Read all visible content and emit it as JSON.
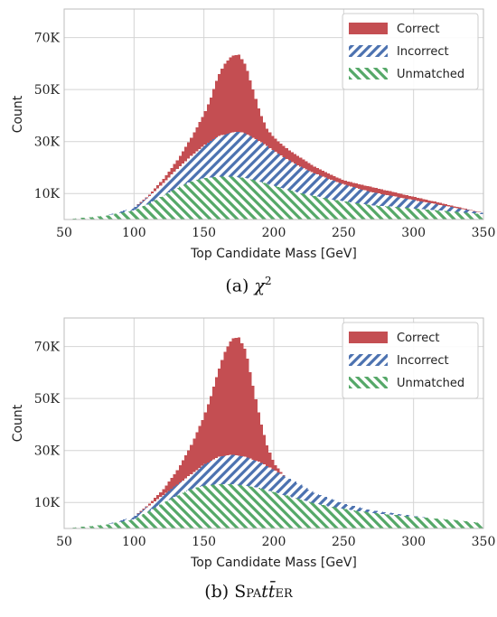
{
  "chart_data": [
    {
      "type": "bar",
      "subtype": "stacked-histogram",
      "title": "",
      "xlabel": "Top Candidate Mass [GeV]",
      "ylabel": "Count",
      "xlim": [
        50,
        350
      ],
      "ylim": [
        0,
        81000
      ],
      "xticks": [
        50,
        100,
        150,
        200,
        250,
        300,
        350
      ],
      "xtick_labels": [
        "50",
        "100",
        "150",
        "200",
        "250",
        "300",
        "350"
      ],
      "yticks": [
        10000,
        30000,
        50000,
        70000
      ],
      "ytick_labels": [
        "10K",
        "30K",
        "50K",
        "70K"
      ],
      "grid": true,
      "legend_position": "top-right",
      "caption_prefix": "(a)",
      "caption_symbol": "χ",
      "caption_sup": "2",
      "bin_width": 2,
      "series": [
        {
          "name": "Correct",
          "color": "#c44e52",
          "hatch": "none",
          "x": [
            50,
            80,
            100,
            110,
            120,
            130,
            140,
            150,
            155,
            160,
            165,
            170,
            175,
            180,
            185,
            190,
            195,
            200,
            210,
            220,
            230,
            250,
            350
          ],
          "top": [
            0,
            1500,
            4500,
            9000,
            15000,
            22000,
            30500,
            40500,
            47000,
            55000,
            60000,
            63000,
            63500,
            59000,
            50000,
            41000,
            35000,
            31500,
            27000,
            23500,
            20000,
            15000,
            2500
          ]
        },
        {
          "name": "Incorrect",
          "color": "#4c72b0",
          "hatch": "forward",
          "x": [
            50,
            80,
            100,
            110,
            120,
            130,
            140,
            150,
            160,
            170,
            175,
            180,
            190,
            200,
            210,
            220,
            230,
            250,
            270,
            300,
            330,
            350
          ],
          "top": [
            0,
            1500,
            4500,
            8500,
            13500,
            19000,
            24000,
            28500,
            32000,
            33500,
            33800,
            33000,
            30000,
            26500,
            23000,
            20000,
            17500,
            13500,
            10500,
            7500,
            4500,
            2500
          ]
        },
        {
          "name": "Unmatched",
          "color": "#55a868",
          "hatch": "backward",
          "x": [
            50,
            80,
            100,
            110,
            120,
            130,
            140,
            150,
            160,
            170,
            180,
            190,
            200,
            210,
            220,
            230,
            240,
            250,
            270,
            300,
            330,
            350
          ],
          "top": [
            0,
            1500,
            3500,
            6000,
            9000,
            12000,
            14500,
            16000,
            16500,
            16500,
            16000,
            14500,
            13000,
            11500,
            10000,
            9000,
            7800,
            7000,
            5500,
            4300,
            3000,
            2000
          ]
        }
      ]
    },
    {
      "type": "bar",
      "subtype": "stacked-histogram",
      "title": "",
      "xlabel": "Top Candidate Mass [GeV]",
      "ylabel": "Count",
      "xlim": [
        50,
        350
      ],
      "ylim": [
        0,
        81000
      ],
      "xticks": [
        50,
        100,
        150,
        200,
        250,
        300,
        350
      ],
      "xtick_labels": [
        "50",
        "100",
        "150",
        "200",
        "250",
        "300",
        "350"
      ],
      "yticks": [
        10000,
        30000,
        50000,
        70000
      ],
      "ytick_labels": [
        "10K",
        "30K",
        "50K",
        "70K"
      ],
      "grid": true,
      "legend_position": "top-right",
      "caption_prefix": "(b)",
      "caption_name_pre": "Spa",
      "caption_name_tt": "tt̄",
      "caption_name_post": "er",
      "bin_width": 2,
      "series": [
        {
          "name": "Correct",
          "color": "#c44e52",
          "hatch": "none",
          "x": [
            50,
            80,
            100,
            110,
            120,
            130,
            140,
            150,
            155,
            160,
            165,
            170,
            175,
            180,
            185,
            190,
            195,
            200,
            210,
            220,
            230,
            250,
            300,
            350
          ],
          "top": [
            0,
            1500,
            4500,
            9000,
            14500,
            21500,
            31000,
            43000,
            51000,
            60000,
            68000,
            73000,
            73500,
            68000,
            55000,
            42000,
            32000,
            25000,
            18500,
            15000,
            12000,
            8500,
            4500,
            2000
          ]
        },
        {
          "name": "Incorrect",
          "color": "#4c72b0",
          "hatch": "forward",
          "x": [
            50,
            80,
            100,
            110,
            120,
            130,
            140,
            150,
            160,
            170,
            180,
            190,
            200,
            210,
            220,
            230,
            250,
            270,
            300,
            330,
            350
          ],
          "top": [
            0,
            1500,
            4500,
            8500,
            12500,
            16500,
            20500,
            24500,
            27500,
            28500,
            27500,
            25500,
            22500,
            19500,
            16500,
            13500,
            9500,
            7000,
            4800,
            3000,
            2000
          ]
        },
        {
          "name": "Unmatched",
          "color": "#55a868",
          "hatch": "backward",
          "x": [
            50,
            80,
            100,
            110,
            120,
            130,
            140,
            150,
            160,
            170,
            180,
            190,
            200,
            210,
            220,
            230,
            240,
            250,
            270,
            300,
            330,
            350
          ],
          "top": [
            0,
            1500,
            3500,
            6500,
            9500,
            12500,
            15000,
            16500,
            17000,
            17000,
            16500,
            15500,
            14000,
            12500,
            11000,
            9500,
            8500,
            7500,
            6000,
            4500,
            3200,
            2000
          ]
        }
      ]
    }
  ]
}
